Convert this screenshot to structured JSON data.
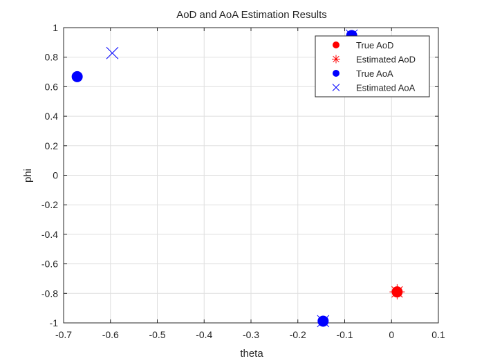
{
  "chart_data": {
    "type": "scatter",
    "title": "AoD and AoA Estimation Results",
    "xlabel": "theta",
    "ylabel": "phi",
    "xlim": [
      -0.7,
      0.1
    ],
    "ylim": [
      -1,
      1
    ],
    "xticks": [
      "-0.7",
      "-0.6",
      "-0.5",
      "-0.4",
      "-0.3",
      "-0.2",
      "-0.1",
      "0",
      "0.1"
    ],
    "yticks": [
      "1",
      "0.8",
      "0.6",
      "0.4",
      "0.2",
      "0",
      "-0.2",
      "-0.4",
      "-0.6",
      "-0.8",
      "-1"
    ],
    "grid": true,
    "legend_position": "top-right",
    "series": [
      {
        "name": "True AoD",
        "marker": "filled-circle",
        "color": "#ff0000",
        "points": [
          [
            0.012,
            -0.79
          ]
        ]
      },
      {
        "name": "Estimated AoD",
        "marker": "asterisk",
        "color": "#ff0000",
        "points": [
          [
            0.012,
            -0.79
          ]
        ]
      },
      {
        "name": "True AoA",
        "marker": "filled-circle",
        "color": "#0000ff",
        "points": [
          [
            -0.671,
            0.668
          ],
          [
            -0.146,
            -0.988
          ],
          [
            -0.085,
            0.947
          ]
        ]
      },
      {
        "name": "Estimated AoA",
        "marker": "cross",
        "color": "#0000ff",
        "points": [
          [
            -0.596,
            0.828
          ],
          [
            -0.146,
            -0.988
          ],
          [
            -0.085,
            0.947
          ]
        ]
      }
    ]
  }
}
